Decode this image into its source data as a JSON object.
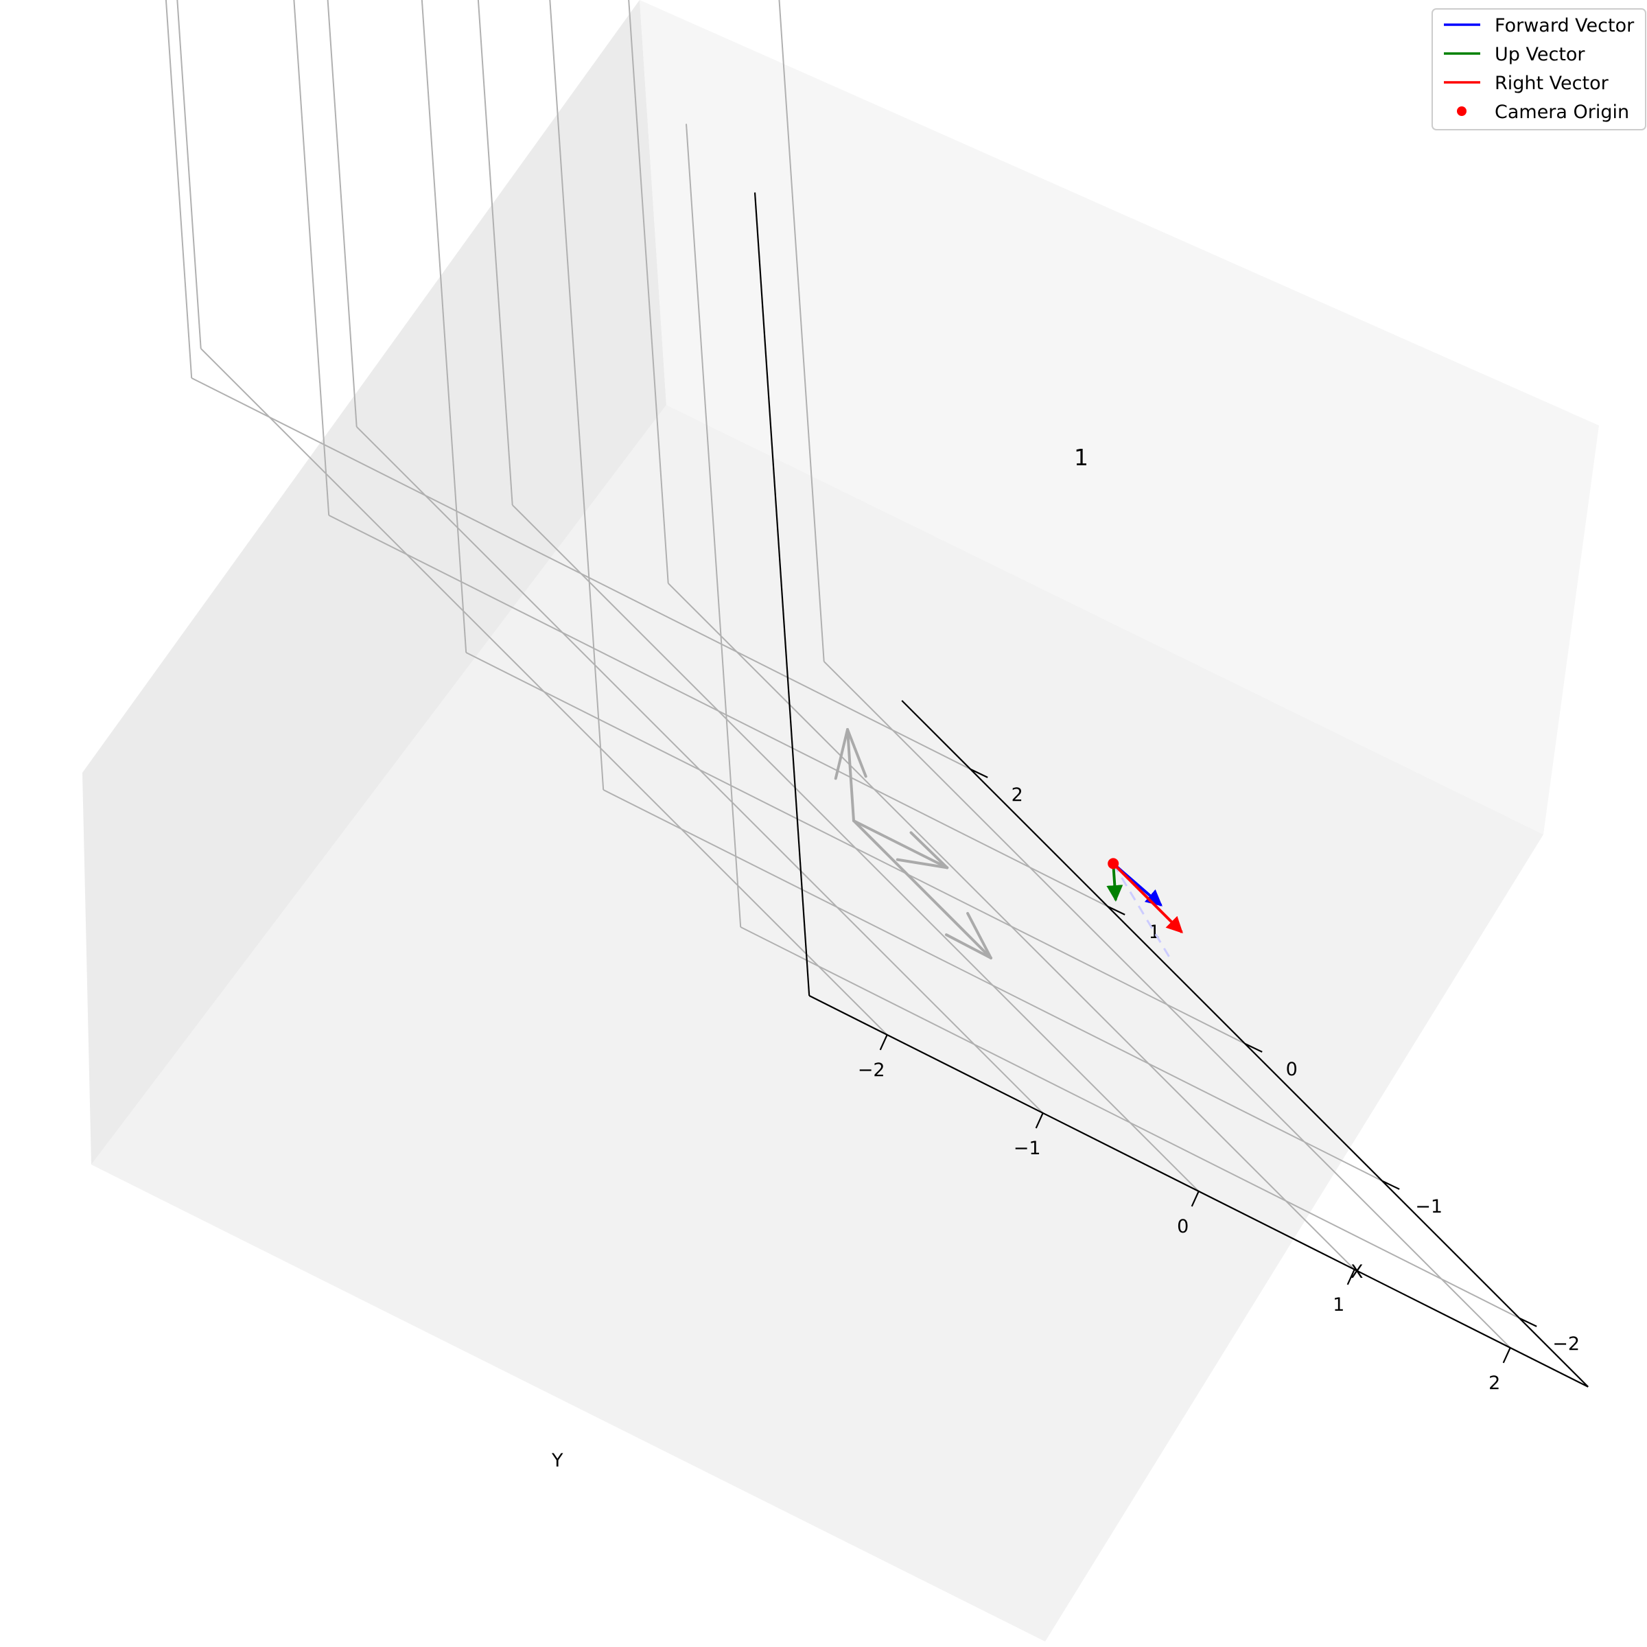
{
  "chart_data": {
    "type": "3d-quiver",
    "title": "",
    "xlabel": "X",
    "ylabel": "Y",
    "zlabel": "",
    "x_ticks": [
      "−2",
      "−1",
      "0",
      "1",
      "2"
    ],
    "y_ticks": [
      "−2",
      "−1",
      "0",
      "1",
      "2"
    ],
    "xlim": [
      -2.5,
      2.5
    ],
    "ylim": [
      -2.5,
      2.5
    ],
    "grid": true,
    "legend_position": "top-right",
    "legend": [
      {
        "label": "Forward Vector",
        "color": "#0000ff",
        "marker": "line"
      },
      {
        "label": "Up Vector",
        "color": "#008000",
        "marker": "line"
      },
      {
        "label": "Right Vector",
        "color": "#ff0000",
        "marker": "line"
      },
      {
        "label": "Camera Origin",
        "color": "#ff0000",
        "marker": "dot"
      }
    ],
    "camera": {
      "label": "1",
      "origin": [
        -1.3,
        0.6,
        2.0
      ],
      "forward": [
        0,
        0.3,
        -0.2
      ],
      "up": [
        0,
        0,
        -0.4
      ],
      "right": [
        -0.5,
        0,
        0
      ]
    },
    "reference_axes": {
      "origin": [
        0,
        0,
        0
      ],
      "x_axis": [
        -1,
        0,
        0
      ],
      "y_axis": [
        0,
        0.6,
        0
      ],
      "z_axis": [
        0,
        0,
        1
      ],
      "color": "#aaaaaa"
    },
    "forward_ray": {
      "start": [
        -1.3,
        0.6,
        2.0
      ],
      "end": [
        0.3,
        2.3,
        0.0
      ],
      "style": "dashed",
      "color": "#ccccff"
    }
  }
}
